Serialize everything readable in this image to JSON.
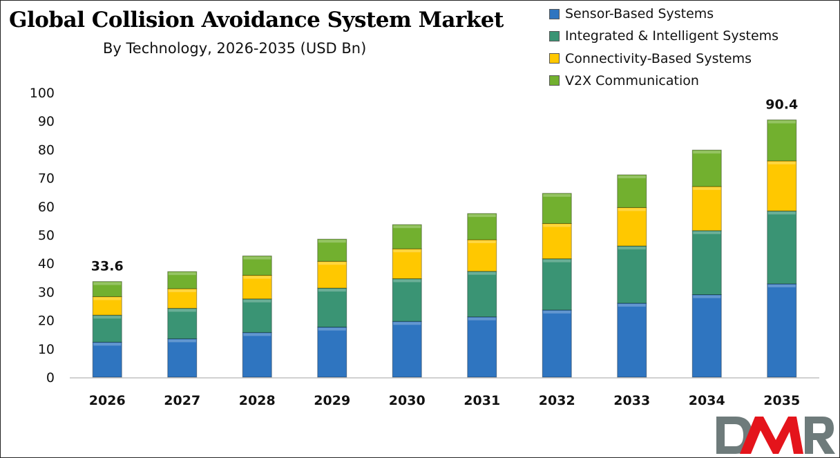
{
  "chart_data": {
    "type": "bar",
    "stacked": true,
    "title": "Global Collision Avoidance System Market",
    "subtitle": "By Technology, 2026-2035 (USD Bn)",
    "categories": [
      "2026",
      "2027",
      "2028",
      "2029",
      "2030",
      "2031",
      "2032",
      "2033",
      "2034",
      "2035"
    ],
    "series": [
      {
        "name": "Sensor-Based Systems",
        "color": "#2f75c0",
        "values": [
          12.3,
          13.5,
          15.7,
          17.6,
          19.6,
          21.2,
          23.6,
          26.0,
          29.0,
          32.8
        ]
      },
      {
        "name": "Integrated & Intelligent Systems",
        "color": "#3a9474",
        "values": [
          9.5,
          10.7,
          11.8,
          13.7,
          15.0,
          16.0,
          18.0,
          20.1,
          22.5,
          25.6
        ]
      },
      {
        "name": "Connectivity-Based Systems",
        "color": "#ffc800",
        "values": [
          6.5,
          6.9,
          8.3,
          9.4,
          10.5,
          11.1,
          12.4,
          13.5,
          15.5,
          17.6
        ]
      },
      {
        "name": "V2X Communication",
        "color": "#72b02f",
        "values": [
          5.3,
          6.0,
          6.8,
          7.8,
          8.5,
          9.2,
          10.6,
          11.5,
          12.8,
          14.4
        ]
      }
    ],
    "annotations": [
      {
        "category": "2026",
        "text": "33.6"
      },
      {
        "category": "2035",
        "text": "90.4"
      }
    ],
    "yticks": [
      "0",
      "10",
      "20",
      "30",
      "40",
      "50",
      "60",
      "70",
      "80",
      "90",
      "100"
    ],
    "ylim": [
      0,
      100
    ],
    "grid": false,
    "legend": "top-right",
    "xlabel": "",
    "ylabel": ""
  },
  "logo": {
    "text": "DMR",
    "colors": {
      "D": "#6e7b7b",
      "M": "#e4141b",
      "R": "#6e7b7b"
    }
  }
}
